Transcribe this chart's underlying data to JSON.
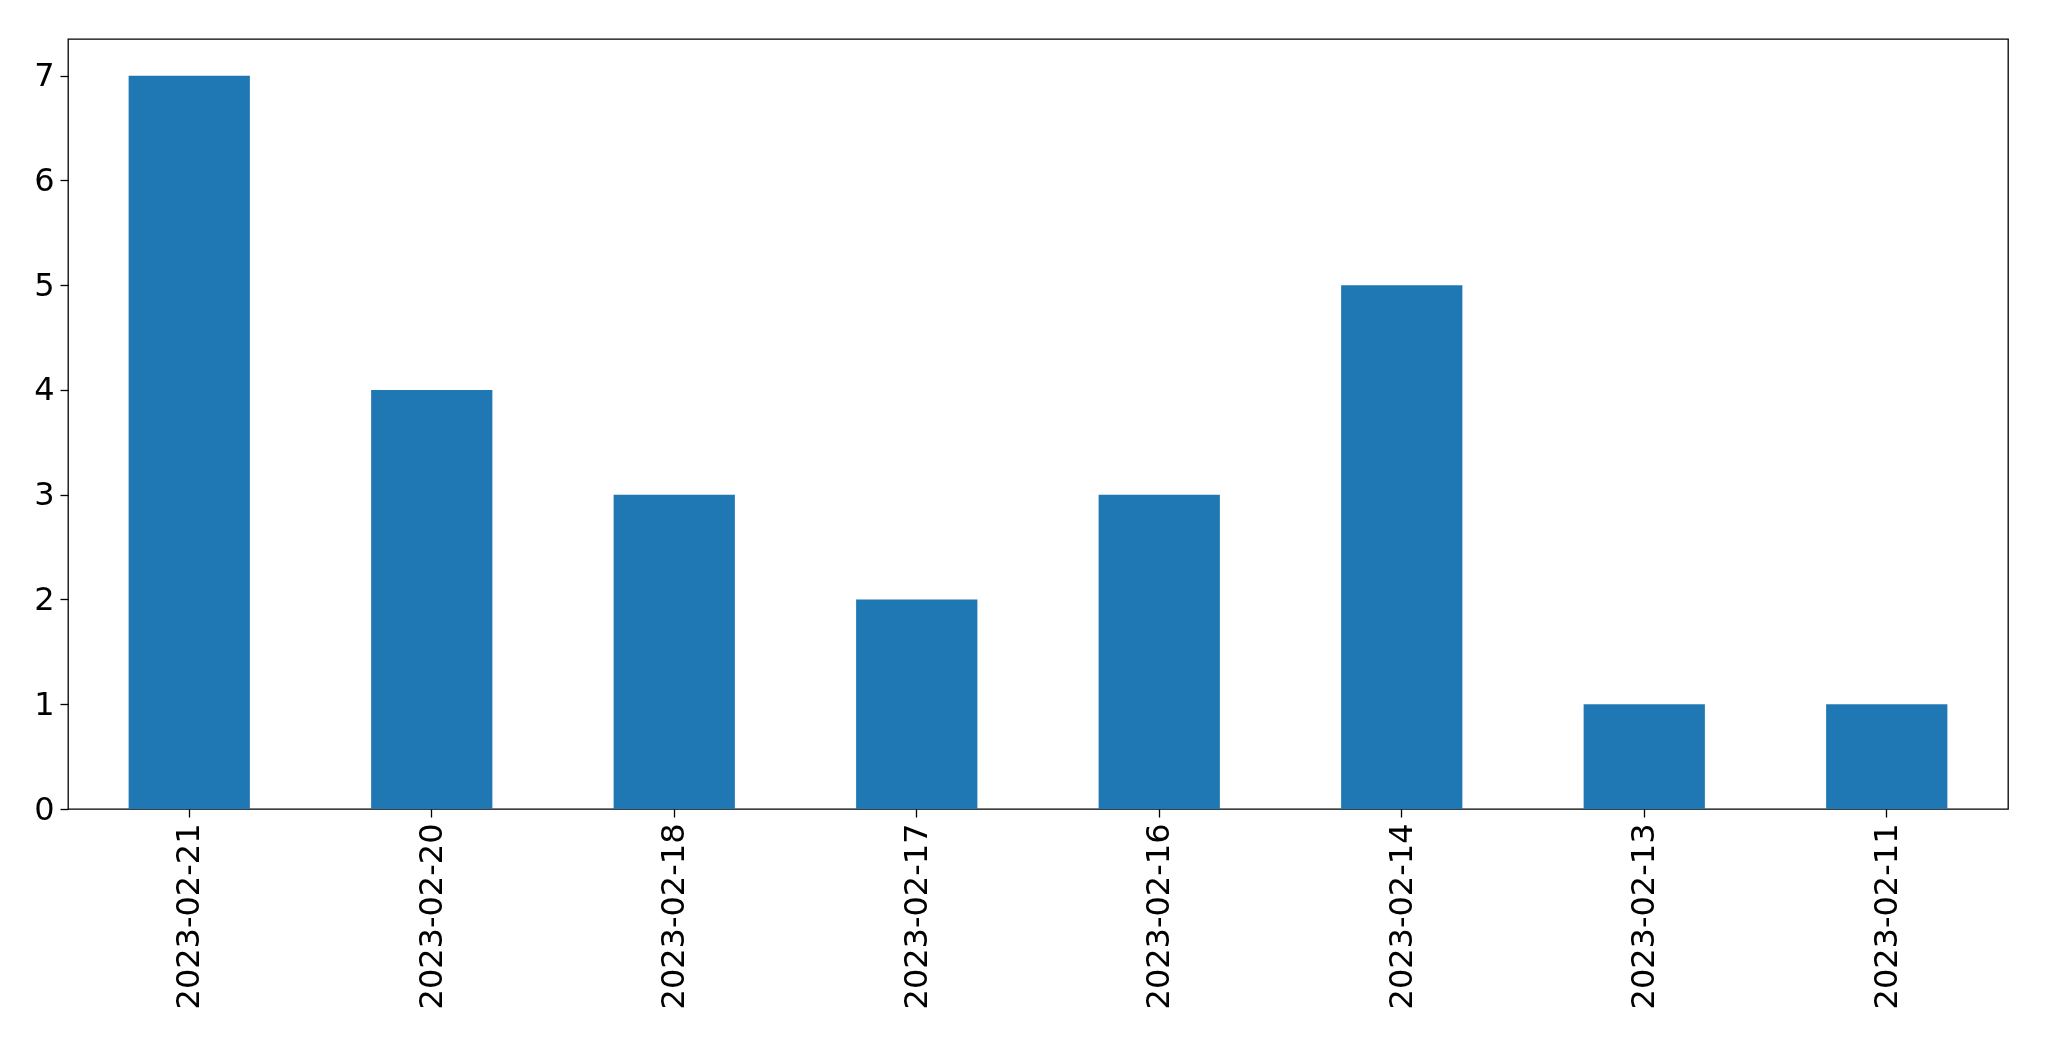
{
  "chart_data": {
    "type": "bar",
    "categories": [
      "2023-02-21",
      "2023-02-20",
      "2023-02-18",
      "2023-02-17",
      "2023-02-16",
      "2023-02-14",
      "2023-02-13",
      "2023-02-11"
    ],
    "values": [
      7,
      4,
      3,
      2,
      3,
      5,
      1,
      1
    ],
    "color": "#1f77b4",
    "ylim": [
      0,
      7.35
    ],
    "yticks": [
      0,
      1,
      2,
      3,
      4,
      5,
      6,
      7
    ],
    "grid": false
  }
}
